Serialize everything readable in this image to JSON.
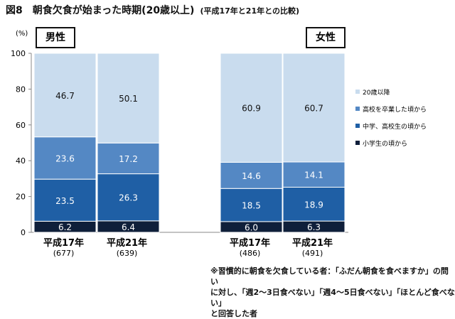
{
  "chart_data": {
    "type": "bar",
    "stacked": true,
    "title": "図8　朝食欠食が始まった時期(20歳以上)",
    "subtitle": "(平成17年と21年との比較)",
    "ylabel": "(%)",
    "ylim": [
      0,
      100
    ],
    "yticks": [
      0,
      20,
      40,
      60,
      80,
      100
    ],
    "groups": [
      {
        "label": "男性"
      },
      {
        "label": "女性"
      }
    ],
    "categories": [
      {
        "group": "男性",
        "label": "平成17年",
        "n": "(677)"
      },
      {
        "group": "男性",
        "label": "平成21年",
        "n": "(639)"
      },
      {
        "group": "女性",
        "label": "平成17年",
        "n": "(486)"
      },
      {
        "group": "女性",
        "label": "平成21年",
        "n": "(491)"
      }
    ],
    "series": [
      {
        "name": "小学生の頃から",
        "color": "#0f1f3a",
        "values": [
          6.2,
          6.4,
          6.0,
          6.3
        ]
      },
      {
        "name": "中学、高校生の頃から",
        "color": "#1f5fa5",
        "values": [
          23.5,
          26.3,
          18.5,
          18.9
        ]
      },
      {
        "name": "高校を卒業した頃から",
        "color": "#5488c4",
        "values": [
          23.6,
          17.2,
          14.6,
          14.1
        ]
      },
      {
        "name": "20歳以降",
        "color": "#c9dcee",
        "values": [
          46.7,
          50.1,
          60.9,
          60.7
        ]
      }
    ],
    "legend_position": "right",
    "grid": false
  },
  "footnote": [
    "※習慣的に朝食を欠食している者：「ふだん朝食を食べますか」の問い",
    "に対し、「週2～3日食べない」「週4～5日食べない」「ほとんど食べない」",
    "と回答した者"
  ]
}
